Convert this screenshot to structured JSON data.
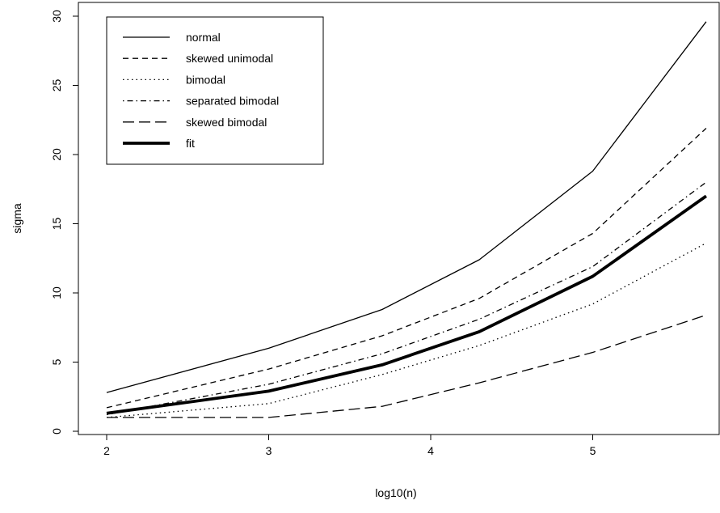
{
  "chart_data": {
    "type": "line",
    "xlabel": "log10(n)",
    "ylabel": "sigma",
    "xlim": [
      1.83,
      5.72
    ],
    "ylim": [
      0,
      30
    ],
    "x_ticks": [
      2,
      3,
      4,
      5
    ],
    "y_ticks": [
      0,
      5,
      10,
      15,
      20,
      25,
      30
    ],
    "x": [
      2,
      3,
      3.7,
      4.3,
      5,
      5.7
    ],
    "grid": false,
    "legend_position": "top-left",
    "series": [
      {
        "name": "normal",
        "values": [
          2.8,
          6.0,
          8.8,
          12.4,
          18.8,
          29.6
        ],
        "dash": "solid",
        "width": 1.3
      },
      {
        "name": "skewed unimodal",
        "values": [
          1.7,
          4.5,
          6.9,
          9.6,
          14.3,
          21.9
        ],
        "dash": "7,5",
        "width": 1.3
      },
      {
        "name": "bimodal",
        "values": [
          1.0,
          2.0,
          4.1,
          6.2,
          9.2,
          13.6
        ],
        "dash": "1.5,4",
        "width": 1.3
      },
      {
        "name": "separated bimodal",
        "values": [
          1.2,
          3.4,
          5.6,
          8.1,
          11.9,
          18.0
        ],
        "dash": "1.5,4,7,4",
        "width": 1.3
      },
      {
        "name": "skewed bimodal",
        "values": [
          1.0,
          1.0,
          1.8,
          3.5,
          5.7,
          8.4
        ],
        "dash": "14,6",
        "width": 1.3
      },
      {
        "name": "fit",
        "values": [
          1.3,
          2.9,
          4.8,
          7.2,
          11.2,
          17.0
        ],
        "dash": "solid",
        "width": 3.8
      }
    ]
  }
}
